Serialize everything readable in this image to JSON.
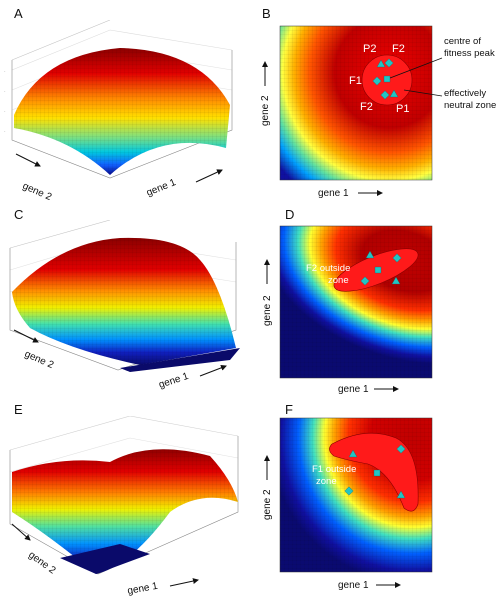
{
  "panels": {
    "A": {
      "label": "A",
      "x_axis": "gene 1",
      "y_axis": "gene 2"
    },
    "B": {
      "label": "B",
      "x_axis": "gene 1",
      "y_axis": "gene 2",
      "markers": {
        "p2": "P2",
        "f2_top": "F2",
        "f1": "F1",
        "f2_bottom": "F2",
        "p1": "P1"
      },
      "annotations": {
        "peak_1": "centre of",
        "peak_2": "fitness peak",
        "zone_1": "effectively",
        "zone_2": "neutral zone"
      }
    },
    "C": {
      "label": "C",
      "x_axis": "gene 1",
      "y_axis": "gene 2"
    },
    "D": {
      "label": "D",
      "x_axis": "gene 1",
      "y_axis": "gene 2",
      "note_1": "F2 outside",
      "note_2": "zone"
    },
    "E": {
      "label": "E",
      "x_axis": "gene 1",
      "y_axis": "gene 2"
    },
    "F": {
      "label": "F",
      "x_axis": "gene 1",
      "y_axis": "gene 2",
      "note_1": "F1 outside",
      "note_2": "zone"
    }
  },
  "colors": {
    "zone": "#ff1a1a",
    "marker": "#22c4c4",
    "low": "#1a0a9a",
    "mid": "#ffd000",
    "high": "#d10000"
  }
}
